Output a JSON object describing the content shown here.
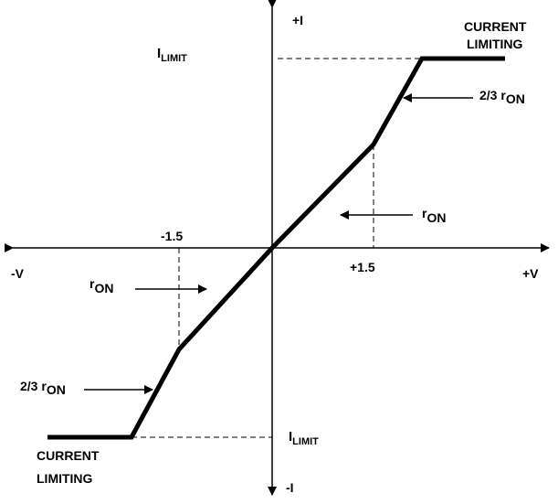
{
  "axes": {
    "y_positive": "+I",
    "y_negative": "-I",
    "x_positive": "+V",
    "x_negative": "-V"
  },
  "ticks": {
    "neg": "-1.5",
    "pos": "+1.5"
  },
  "limit": {
    "top_main": "I",
    "top_sub": "LIMIT",
    "bottom_main": "I",
    "bottom_sub": "LIMIT"
  },
  "labels": {
    "top_current_line1": "CURRENT",
    "top_current_line2": "LIMITING",
    "bottom_current_line1": "CURRENT",
    "bottom_current_line2": "LIMITING",
    "upper_slope_prefix": "2/3 r",
    "upper_slope_sub": "ON",
    "mid_ron_main": "r",
    "mid_ron_sub": "ON",
    "left_ron_main": "r",
    "left_ron_sub": "ON",
    "lower_slope_prefix": "2/3 r",
    "lower_slope_sub": "ON"
  },
  "colors": {
    "stroke": "#000000",
    "background": "#ffffff"
  }
}
